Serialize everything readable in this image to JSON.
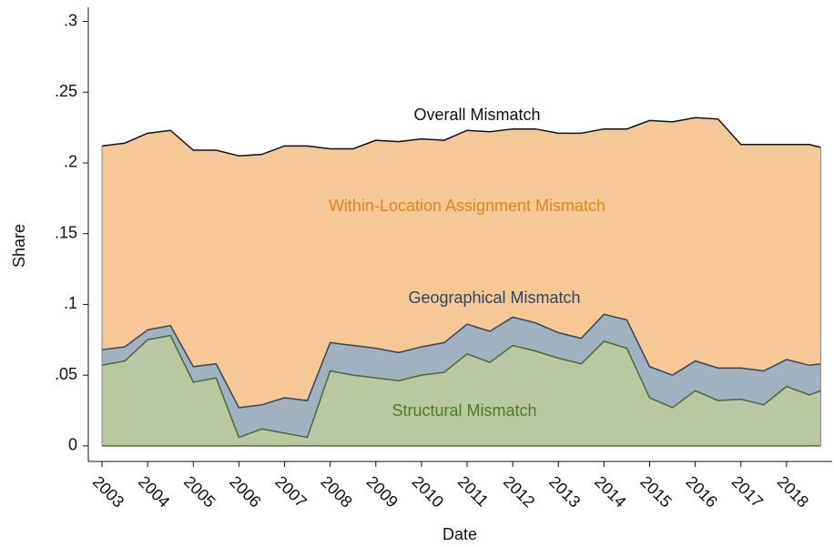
{
  "chart_data": {
    "type": "stacked_area",
    "x_label": "Date",
    "y_label": "Share",
    "annotation": "Overall Mismatch",
    "x": [
      2003,
      2003.5,
      2004,
      2004.5,
      2005,
      2005.5,
      2006,
      2006.5,
      2007,
      2007.5,
      2008,
      2008.5,
      2009,
      2009.5,
      2010,
      2010.5,
      2011,
      2011.5,
      2012,
      2012.5,
      2013,
      2013.5,
      2014,
      2014.5,
      2015,
      2015.5,
      2016,
      2016.5,
      2017,
      2017.5,
      2018,
      2018.5,
      2018.75
    ],
    "series": [
      {
        "name": "Structural Mismatch",
        "color": "#bac8a2",
        "line_color": "#4b6b30",
        "label_color": "#4e7a2c",
        "values": [
          0.057,
          0.06,
          0.075,
          0.078,
          0.045,
          0.048,
          0.006,
          0.012,
          0.009,
          0.006,
          0.053,
          0.05,
          0.048,
          0.046,
          0.05,
          0.052,
          0.065,
          0.059,
          0.071,
          0.067,
          0.062,
          0.058,
          0.074,
          0.069,
          0.034,
          0.027,
          0.039,
          0.032,
          0.033,
          0.029,
          0.042,
          0.036,
          0.039
        ]
      },
      {
        "name": "Geographical Mismatch",
        "color": "#a0b1c0",
        "line_color": "#2b4868",
        "label_color": "#2b4868",
        "values": [
          0.011,
          0.01,
          0.007,
          0.007,
          0.011,
          0.01,
          0.021,
          0.017,
          0.025,
          0.026,
          0.02,
          0.021,
          0.021,
          0.02,
          0.02,
          0.021,
          0.021,
          0.022,
          0.02,
          0.02,
          0.018,
          0.018,
          0.019,
          0.02,
          0.022,
          0.023,
          0.021,
          0.023,
          0.022,
          0.024,
          0.019,
          0.021,
          0.019
        ]
      },
      {
        "name": "Within-Location Assignment Mismatch",
        "color": "#f5c896",
        "line_color": "#111111",
        "label_color": "#e0861c",
        "values": [
          0.144,
          0.144,
          0.139,
          0.138,
          0.153,
          0.151,
          0.178,
          0.177,
          0.178,
          0.18,
          0.137,
          0.139,
          0.147,
          0.149,
          0.147,
          0.143,
          0.137,
          0.141,
          0.133,
          0.137,
          0.141,
          0.145,
          0.131,
          0.135,
          0.174,
          0.179,
          0.172,
          0.176,
          0.158,
          0.16,
          0.152,
          0.156,
          0.153
        ]
      }
    ],
    "xlim": [
      2002.7,
      2019.0
    ],
    "xticks": [
      2003,
      2004,
      2005,
      2006,
      2007,
      2008,
      2009,
      2010,
      2011,
      2012,
      2013,
      2014,
      2015,
      2016,
      2017,
      2018
    ],
    "ylim": [
      -0.011,
      0.31
    ],
    "yticks": [
      0,
      {
        "value": 0.05,
        "label": ".05"
      },
      {
        "value": 0.1,
        "label": ".1"
      },
      {
        "value": 0.15,
        "label": ".15"
      },
      {
        "value": 0.2,
        "label": ".2"
      },
      {
        "value": 0.25,
        "label": ".25"
      },
      {
        "value": 0.3,
        "label": ".3"
      }
    ],
    "grid": false
  }
}
